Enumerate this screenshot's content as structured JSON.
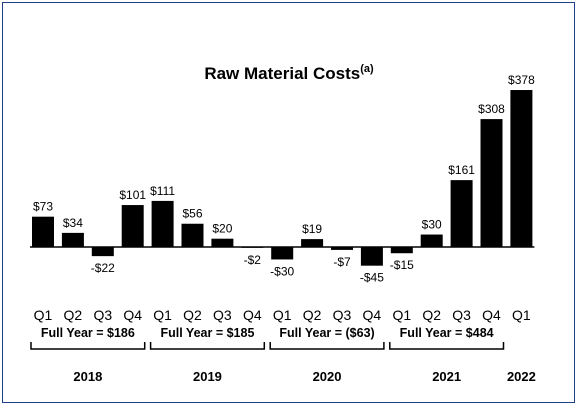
{
  "chart_data": {
    "type": "bar",
    "title": "Raw Material Costs",
    "title_superscript": "(a)",
    "categories": [
      "Q1",
      "Q2",
      "Q3",
      "Q4",
      "Q1",
      "Q2",
      "Q3",
      "Q4",
      "Q1",
      "Q2",
      "Q3",
      "Q4",
      "Q1",
      "Q2",
      "Q3",
      "Q4",
      "Q1"
    ],
    "values": [
      73,
      34,
      -22,
      101,
      111,
      56,
      20,
      -2,
      -30,
      19,
      -7,
      -45,
      -15,
      30,
      161,
      308,
      378
    ],
    "value_labels": [
      "$73",
      "$34",
      "-$22",
      "$101",
      "$111",
      "$56",
      "$20",
      "-$2",
      "-$30",
      "$19",
      "-$7",
      "-$45",
      "-$15",
      "$30",
      "$161",
      "$308",
      "$378"
    ],
    "years": [
      {
        "year": "2018",
        "full_year": "Full Year = $186"
      },
      {
        "year": "2019",
        "full_year": "Full Year = $185"
      },
      {
        "year": "2020",
        "full_year": "Full Year = ($63)"
      },
      {
        "year": "2021",
        "full_year": "Full Year = $484"
      },
      {
        "year": "2022",
        "full_year": ""
      }
    ],
    "bar_color": "#000000",
    "border_color": "#1f3f8a",
    "grid": false,
    "legend": "none"
  }
}
